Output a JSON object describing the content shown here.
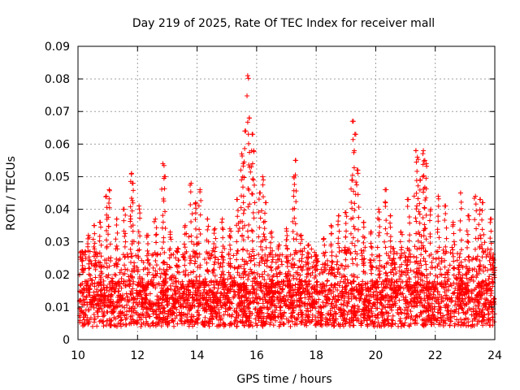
{
  "chart_data": {
    "type": "scatter",
    "title": "Day 219 of 2025, Rate Of TEC Index for receiver mall",
    "xlabel": "GPS time / hours",
    "ylabel": "ROTI / TECUs",
    "xlim": [
      10,
      24
    ],
    "ylim": [
      0,
      0.09
    ],
    "x_ticks": [
      "10",
      "12",
      "14",
      "16",
      "18",
      "20",
      "22",
      "24"
    ],
    "x_tick_values": [
      10,
      12,
      14,
      16,
      18,
      20,
      22,
      24
    ],
    "y_ticks": [
      "0",
      "0.01",
      "0.02",
      "0.03",
      "0.04",
      "0.05",
      "0.06",
      "0.07",
      "0.08",
      "0.09"
    ],
    "y_tick_values": [
      0,
      0.01,
      0.02,
      0.03,
      0.04,
      0.05,
      0.06,
      0.07,
      0.08,
      0.09
    ],
    "grid": true,
    "marker": "+",
    "color": "#ff0000",
    "series": [
      {
        "name": "ROTI",
        "x": [
          10.15,
          10.35,
          10.55,
          10.75,
          10.95,
          11.05,
          11.3,
          11.55,
          11.8,
          11.85,
          12.05,
          12.35,
          12.6,
          12.85,
          12.9,
          13.1,
          13.35,
          13.6,
          13.8,
          13.95,
          14.1,
          14.35,
          14.6,
          14.85,
          15.1,
          15.35,
          15.5,
          15.55,
          15.6,
          15.7,
          15.75,
          15.85,
          15.9,
          16.1,
          16.2,
          16.3,
          16.5,
          16.75,
          17.0,
          17.25,
          17.3,
          17.5,
          17.75,
          18.0,
          18.25,
          18.5,
          18.75,
          19.0,
          19.2,
          19.25,
          19.3,
          19.4,
          19.6,
          19.85,
          20.1,
          20.35,
          20.5,
          20.6,
          20.85,
          21.1,
          21.35,
          21.4,
          21.5,
          21.6,
          21.65,
          21.7,
          21.85,
          22.1,
          22.35,
          22.6,
          22.85,
          23.1,
          23.35,
          23.5,
          23.6,
          23.85,
          23.95
        ],
        "y": [
          0.027,
          0.032,
          0.035,
          0.036,
          0.044,
          0.046,
          0.037,
          0.04,
          0.051,
          0.048,
          0.041,
          0.032,
          0.037,
          0.054,
          0.05,
          0.033,
          0.028,
          0.035,
          0.048,
          0.042,
          0.046,
          0.037,
          0.034,
          0.037,
          0.034,
          0.043,
          0.057,
          0.054,
          0.064,
          0.081,
          0.068,
          0.063,
          0.058,
          0.045,
          0.05,
          0.042,
          0.033,
          0.029,
          0.034,
          0.05,
          0.055,
          0.032,
          0.029,
          0.026,
          0.031,
          0.035,
          0.038,
          0.039,
          0.049,
          0.067,
          0.063,
          0.052,
          0.036,
          0.033,
          0.04,
          0.046,
          0.038,
          0.028,
          0.033,
          0.043,
          0.058,
          0.056,
          0.049,
          0.058,
          0.055,
          0.054,
          0.04,
          0.044,
          0.041,
          0.036,
          0.045,
          0.038,
          0.044,
          0.043,
          0.042,
          0.037,
          0.025
        ]
      }
    ]
  }
}
